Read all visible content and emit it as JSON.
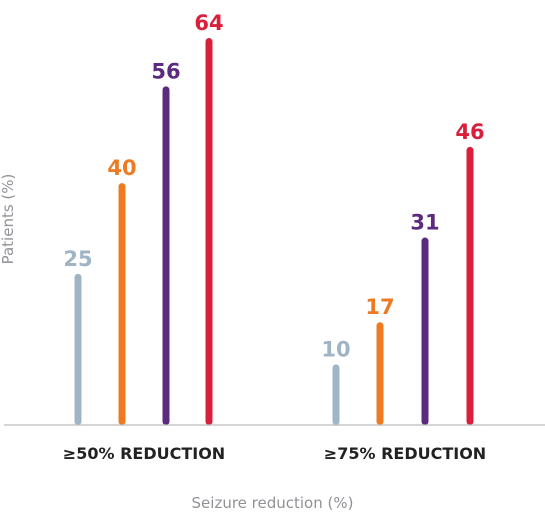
{
  "chart_data": {
    "type": "bar",
    "categories": [
      "≥50% REDUCTION",
      "≥75% REDUCTION"
    ],
    "series": [
      {
        "values": [
          25,
          10
        ],
        "color": "#9fb4c5"
      },
      {
        "values": [
          40,
          17
        ],
        "color": "#ee7b23"
      },
      {
        "values": [
          56,
          31
        ],
        "color": "#5c2a7e"
      },
      {
        "values": [
          64,
          46
        ],
        "color": "#d8203c"
      }
    ],
    "xlabel": "Seizure reduction (%)",
    "ylabel": "Patients (%)",
    "ylim": [
      0,
      64
    ],
    "grid": false,
    "axis_color": "#8f9296"
  }
}
